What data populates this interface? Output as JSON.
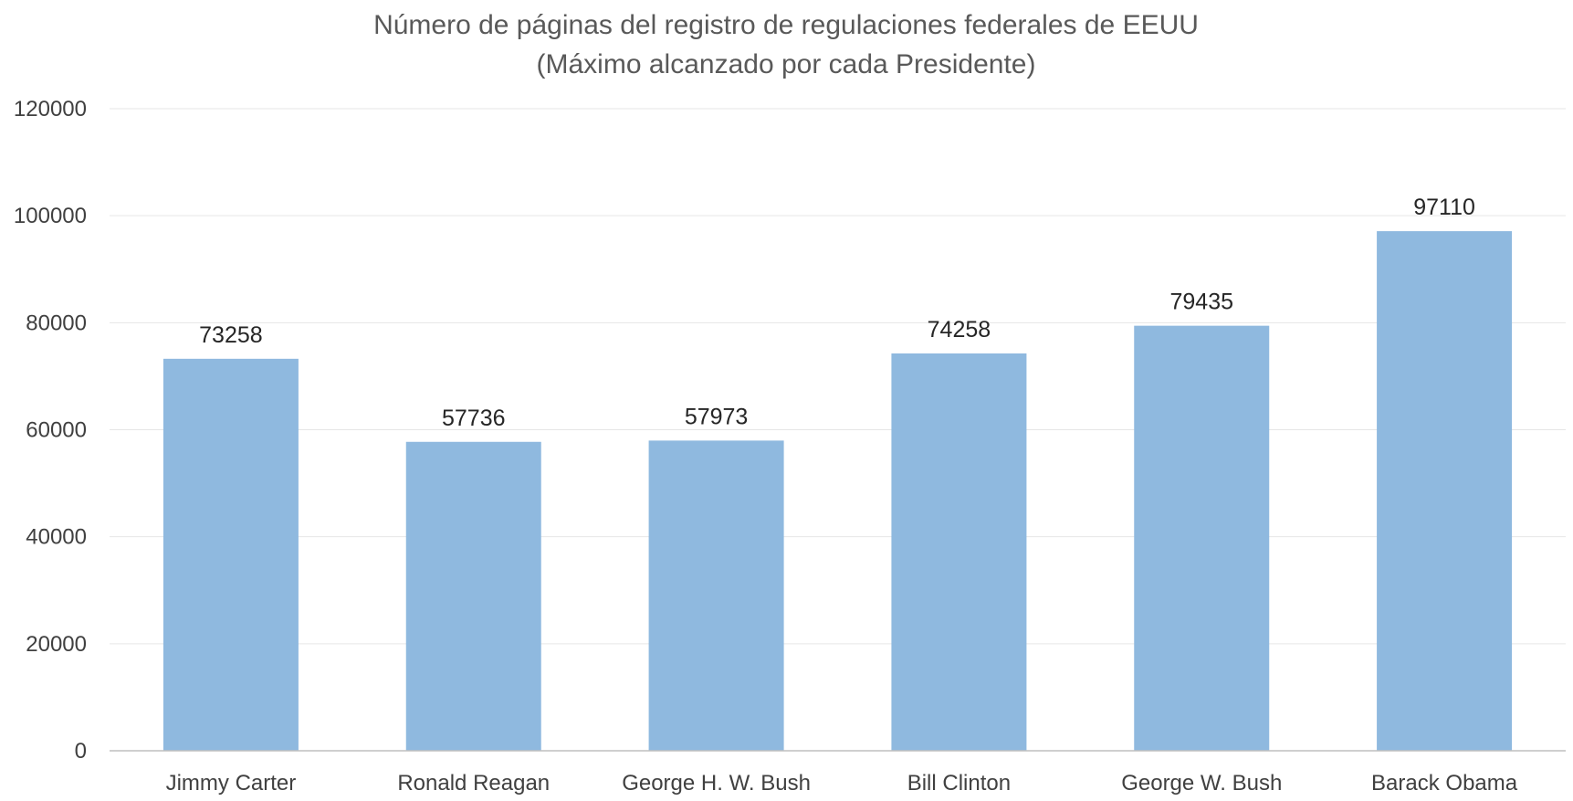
{
  "chart_data": {
    "type": "bar",
    "title": "Número de páginas del registro de regulaciones federales de EEUU",
    "subtitle": "(Máximo alcanzado por cada Presidente)",
    "categories": [
      "Jimmy Carter",
      "Ronald Reagan",
      "George H. W. Bush",
      "Bill Clinton",
      "George W. Bush",
      "Barack Obama"
    ],
    "values": [
      73258,
      57736,
      57973,
      74258,
      79435,
      97110
    ],
    "data_labels": [
      "73258",
      "57736",
      "57973",
      "74258",
      "79435",
      "97110"
    ],
    "ylim": [
      0,
      120000
    ],
    "yticks": [
      0,
      20000,
      40000,
      60000,
      80000,
      100000,
      120000
    ],
    "ytick_labels": [
      "0",
      "20000",
      "40000",
      "60000",
      "80000",
      "100000",
      "120000"
    ],
    "grid": true,
    "legend": "none",
    "bar_color": "#8fb9df"
  }
}
